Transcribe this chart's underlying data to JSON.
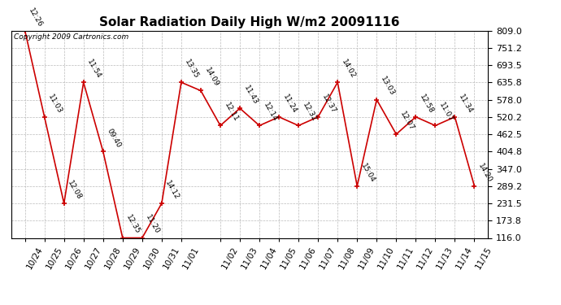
{
  "title": "Solar Radiation Daily High W/m2 20091116",
  "copyright": "Copyright 2009 Cartronics.com",
  "x_positions": [
    0,
    1,
    2,
    3,
    4,
    5,
    6,
    7,
    8,
    9,
    10,
    11,
    12,
    13,
    14,
    15,
    16,
    17,
    18,
    19,
    20,
    21,
    22,
    23
  ],
  "y_values": [
    809.0,
    520.2,
    231.5,
    635.8,
    404.8,
    116.0,
    116.0,
    231.5,
    635.8,
    608.0,
    491.3,
    549.0,
    491.3,
    520.2,
    491.3,
    520.2,
    635.8,
    289.2,
    578.0,
    462.5,
    520.2,
    491.3,
    520.2,
    289.2
  ],
  "time_labels": [
    "12:26",
    "11:03",
    "12:08",
    "11:54",
    "09:40",
    "12:35",
    "11:20",
    "14:12",
    "13:35",
    "14:09",
    "12:11",
    "11:43",
    "12:14",
    "11:24",
    "12:32",
    "12:37",
    "14:02",
    "15:04",
    "13:03",
    "12:07",
    "12:58",
    "11:07",
    "11:34",
    "14:20"
  ],
  "y_ticks": [
    116.0,
    173.8,
    231.5,
    289.2,
    347.0,
    404.8,
    462.5,
    520.2,
    578.0,
    635.8,
    693.5,
    751.2,
    809.0
  ],
  "ymin": 116.0,
  "ymax": 809.0,
  "line_color": "#cc0000",
  "marker_color": "#cc0000",
  "bg_color": "#ffffff",
  "grid_color": "#bbbbbb",
  "title_fontsize": 11,
  "annotation_fontsize": 6.5,
  "x_tick_positions": [
    0,
    1,
    2,
    3,
    4,
    5,
    6,
    7,
    8,
    10,
    11,
    12,
    13,
    14,
    15,
    16,
    17,
    18,
    19,
    20,
    21,
    22,
    23
  ],
  "x_tick_labels": [
    "10/24",
    "10/25",
    "10/26",
    "10/27",
    "10/28",
    "10/29",
    "10/30",
    "10/31",
    "11/01",
    "11/02",
    "11/03",
    "11/04",
    "11/05",
    "11/06",
    "11/07",
    "11/08",
    "11/09",
    "11/10",
    "11/11",
    "11/12",
    "11/13",
    "11/14",
    "11/15"
  ]
}
